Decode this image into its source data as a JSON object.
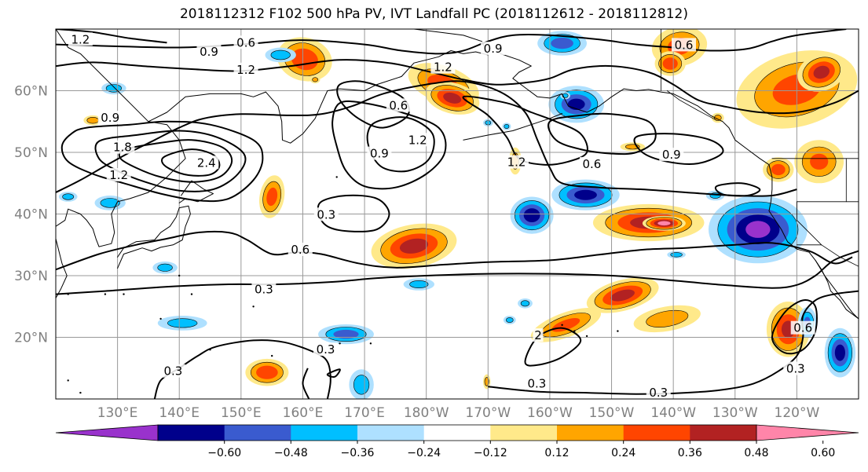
{
  "title": "2018112312 F102 500 hPa PV, IVT Landfall PC (2018112612 - 2018112812)",
  "map": {
    "projection": "PlateCarree",
    "lon_range": [
      120,
      250
    ],
    "lat_range": [
      10,
      70
    ],
    "lat_ticks": [
      {
        "lat": 20,
        "label": "20°N"
      },
      {
        "lat": 30,
        "label": "30°N"
      },
      {
        "lat": 40,
        "label": "40°N"
      },
      {
        "lat": 50,
        "label": "50°N"
      },
      {
        "lat": 60,
        "label": "60°N"
      }
    ],
    "lon_ticks": [
      {
        "lon": 130,
        "label": "130°E"
      },
      {
        "lon": 140,
        "label": "140°E"
      },
      {
        "lon": 150,
        "label": "150°E"
      },
      {
        "lon": 160,
        "label": "160°E"
      },
      {
        "lon": 170,
        "label": "170°E"
      },
      {
        "lon": 180,
        "label": "180°W"
      },
      {
        "lon": 190,
        "label": "170°W"
      },
      {
        "lon": 200,
        "label": "160°W"
      },
      {
        "lon": 210,
        "label": "150°W"
      },
      {
        "lon": 220,
        "label": "140°W"
      },
      {
        "lon": 230,
        "label": "130°W"
      },
      {
        "lon": 240,
        "label": "120°W"
      }
    ],
    "gridlines": true,
    "pv_contour_labels": [
      {
        "text": "1.2",
        "lon": 124.0,
        "lat": 68.3
      },
      {
        "text": "0.6",
        "lon": 150.8,
        "lat": 67.8
      },
      {
        "text": "0.9",
        "lon": 144.8,
        "lat": 66.3
      },
      {
        "text": "1.2",
        "lon": 150.8,
        "lat": 63.4
      },
      {
        "text": "0.9",
        "lon": 128.8,
        "lat": 55.6
      },
      {
        "text": "1.8",
        "lon": 130.8,
        "lat": 50.8
      },
      {
        "text": "1.2",
        "lon": 130.2,
        "lat": 46.3
      },
      {
        "text": "2.4",
        "lon": 144.4,
        "lat": 48.3
      },
      {
        "text": "1.2",
        "lon": 182.7,
        "lat": 63.8
      },
      {
        "text": "0.9",
        "lon": 190.8,
        "lat": 66.8
      },
      {
        "text": "0.6",
        "lon": 175.5,
        "lat": 57.6
      },
      {
        "text": "1.2",
        "lon": 178.6,
        "lat": 52.0
      },
      {
        "text": "0.9",
        "lon": 172.4,
        "lat": 49.8
      },
      {
        "text": "0.3",
        "lon": 163.8,
        "lat": 39.9
      },
      {
        "text": "0.6",
        "lon": 159.6,
        "lat": 34.2
      },
      {
        "text": "0.3",
        "lon": 153.7,
        "lat": 27.8
      },
      {
        "text": "1.2",
        "lon": 194.6,
        "lat": 48.4
      },
      {
        "text": "0.6",
        "lon": 206.8,
        "lat": 48.1
      },
      {
        "text": "0.9",
        "lon": 219.7,
        "lat": 49.6
      },
      {
        "text": "0.6",
        "lon": 221.7,
        "lat": 67.4
      },
      {
        "text": "0.3",
        "lon": 163.7,
        "lat": 18.0
      },
      {
        "text": "0.3",
        "lon": 139.0,
        "lat": 14.5
      },
      {
        "text": "0.3",
        "lon": 197.9,
        "lat": 12.5
      },
      {
        "text": "0.3",
        "lon": 217.6,
        "lat": 11.0
      },
      {
        "text": "0.3",
        "lon": 239.8,
        "lat": 14.9
      },
      {
        "text": "0.6",
        "lon": 241.0,
        "lat": 21.5
      },
      {
        "text": "2",
        "lon": 198.1,
        "lat": 20.3
      }
    ],
    "ivt_blobs": [
      {
        "lon": 160.3,
        "lat": 65.1,
        "rlon": 4.5,
        "rlat": 3.5,
        "rot": 15,
        "val": 0.45
      },
      {
        "lon": 182.8,
        "lat": 61.0,
        "rlon": 6,
        "rlat": 3,
        "rot": 20,
        "val": 0.42
      },
      {
        "lon": 184.2,
        "lat": 58.8,
        "rlon": 4.5,
        "rlat": 2.5,
        "rot": 15,
        "val": 0.52
      },
      {
        "lon": 162.0,
        "lat": 61.8,
        "rlon": 0.8,
        "rlat": 0.6,
        "rot": 0,
        "val": 0.26
      },
      {
        "lon": 126.0,
        "lat": 55.2,
        "rlon": 1.5,
        "rlat": 0.8,
        "rot": 0,
        "val": 0.3
      },
      {
        "lon": 155.0,
        "lat": 42.8,
        "rlon": 2,
        "rlat": 3.5,
        "rot": 10,
        "val": 0.4
      },
      {
        "lon": 178.0,
        "lat": 34.8,
        "rlon": 7,
        "rlat": 3.5,
        "rot": -10,
        "val": 0.52
      },
      {
        "lon": 216.0,
        "lat": 38.6,
        "rlon": 9,
        "rlat": 3,
        "rot": 0,
        "val": 0.52
      },
      {
        "lon": 218.5,
        "lat": 38.5,
        "rlon": 3.5,
        "rlat": 1.2,
        "rot": 0,
        "val": 0.66
      },
      {
        "lon": 221.0,
        "lat": 67.2,
        "rlon": 4.5,
        "rlat": 3.2,
        "rot": -10,
        "val": 0.4
      },
      {
        "lon": 219.5,
        "lat": 64.4,
        "rlon": 2.5,
        "rlat": 2,
        "rot": 0,
        "val": 0.45
      },
      {
        "lon": 240.0,
        "lat": 60.2,
        "rlon": 10,
        "rlat": 6,
        "rot": -15,
        "val": 0.38
      },
      {
        "lon": 244.0,
        "lat": 63.0,
        "rlon": 4,
        "rlat": 3,
        "rot": -20,
        "val": 0.52
      },
      {
        "lon": 243.6,
        "lat": 48.5,
        "rlon": 4,
        "rlat": 3.5,
        "rot": 0,
        "val": 0.36
      },
      {
        "lon": 237.0,
        "lat": 47.2,
        "rlon": 2.5,
        "rlat": 2,
        "rot": 0,
        "val": 0.42
      },
      {
        "lon": 211.8,
        "lat": 26.8,
        "rlon": 6,
        "rlat": 2.5,
        "rot": -15,
        "val": 0.52
      },
      {
        "lon": 202.6,
        "lat": 22.0,
        "rlon": 6,
        "rlat": 2,
        "rot": -20,
        "val": 0.38
      },
      {
        "lon": 219.0,
        "lat": 23.0,
        "rlon": 5.5,
        "rlat": 2,
        "rot": -10,
        "val": 0.3
      },
      {
        "lon": 238.6,
        "lat": 21.3,
        "rlon": 3.5,
        "rlat": 4.5,
        "rot": 0,
        "val": 0.5
      },
      {
        "lon": 154.2,
        "lat": 14.3,
        "rlon": 3.5,
        "rlat": 2.2,
        "rot": 0,
        "val": 0.46
      },
      {
        "lon": 194.4,
        "lat": 48.6,
        "rlon": 1,
        "rlat": 2.2,
        "rot": 0,
        "val": 0.28
      },
      {
        "lon": 227.2,
        "lat": 55.6,
        "rlon": 1,
        "rlat": 0.8,
        "rot": 0,
        "val": 0.26
      },
      {
        "lon": 213.4,
        "lat": 50.9,
        "rlon": 2,
        "rlat": 0.7,
        "rot": 0,
        "val": 0.26
      },
      {
        "lon": 189.8,
        "lat": 12.8,
        "rlon": 0.6,
        "rlat": 1.2,
        "rot": 0,
        "val": 0.26
      },
      {
        "lon": 129.4,
        "lat": 60.4,
        "rlon": 2,
        "rlat": 1,
        "rot": 0,
        "val": -0.3
      },
      {
        "lon": 156.4,
        "lat": 65.8,
        "rlon": 2.5,
        "rlat": 1.2,
        "rot": 0,
        "val": -0.3
      },
      {
        "lon": 202.0,
        "lat": 67.7,
        "rlon": 4,
        "rlat": 2,
        "rot": 0,
        "val": -0.42
      },
      {
        "lon": 204.3,
        "lat": 57.8,
        "rlon": 4.5,
        "rlat": 3,
        "rot": 0,
        "val": -0.5
      },
      {
        "lon": 205.8,
        "lat": 43.1,
        "rlon": 5.5,
        "rlat": 2.5,
        "rot": 0,
        "val": -0.52
      },
      {
        "lon": 197.1,
        "lat": 39.8,
        "rlon": 3.5,
        "rlat": 3,
        "rot": 0,
        "val": -0.56
      },
      {
        "lon": 233.7,
        "lat": 37.5,
        "rlon": 8,
        "rlat": 5.5,
        "rot": 0,
        "val": -0.62
      },
      {
        "lon": 241.7,
        "lat": 22.4,
        "rlon": 1.5,
        "rlat": 2.5,
        "rot": 0,
        "val": -0.36
      },
      {
        "lon": 247.0,
        "lat": 17.5,
        "rlon": 2.5,
        "rlat": 4,
        "rot": 0,
        "val": -0.52
      },
      {
        "lon": 167.0,
        "lat": 20.5,
        "rlon": 4.5,
        "rlat": 1.6,
        "rot": 0,
        "val": -0.42
      },
      {
        "lon": 128.8,
        "lat": 41.8,
        "rlon": 2.5,
        "rlat": 1.2,
        "rot": 0,
        "val": -0.3
      },
      {
        "lon": 137.7,
        "lat": 31.3,
        "rlon": 2,
        "rlat": 1,
        "rot": 0,
        "val": -0.28
      },
      {
        "lon": 178.8,
        "lat": 28.6,
        "rlon": 2.5,
        "rlat": 1,
        "rot": 0,
        "val": -0.28
      },
      {
        "lon": 169.5,
        "lat": 12.3,
        "rlon": 2,
        "rlat": 2.5,
        "rot": 0,
        "val": -0.3
      },
      {
        "lon": 220.5,
        "lat": 33.4,
        "rlon": 1.5,
        "rlat": 0.6,
        "rot": 0,
        "val": -0.3
      },
      {
        "lon": 202.5,
        "lat": 59.2,
        "rlon": 0.8,
        "rlat": 0.6,
        "rot": 0,
        "val": -0.26
      },
      {
        "lon": 193.0,
        "lat": 54.2,
        "rlon": 0.7,
        "rlat": 0.6,
        "rot": 0,
        "val": -0.26
      },
      {
        "lon": 196.0,
        "lat": 25.5,
        "rlon": 1.2,
        "rlat": 0.8,
        "rot": 0,
        "val": -0.26
      },
      {
        "lon": 193.5,
        "lat": 22.8,
        "rlon": 1,
        "rlat": 0.7,
        "rot": 0,
        "val": -0.26
      },
      {
        "lon": 226.8,
        "lat": 43.0,
        "rlon": 1.5,
        "rlat": 0.8,
        "rot": 0,
        "val": -0.26
      },
      {
        "lon": 190.0,
        "lat": 54.8,
        "rlon": 0.8,
        "rlat": 0.6,
        "rot": 0,
        "val": -0.26
      },
      {
        "lon": 140.5,
        "lat": 22.3,
        "rlon": 4,
        "rlat": 1.2,
        "rot": 0,
        "val": -0.28
      },
      {
        "lon": 122.0,
        "lat": 42.8,
        "rlon": 1.5,
        "rlat": 0.8,
        "rot": 0,
        "val": -0.28
      }
    ]
  },
  "colorbar": {
    "colors": [
      "#9932cc",
      "#00008b",
      "#3a5bcf",
      "#00bfff",
      "#aee0ff",
      "#ffffff",
      "#ffe98a",
      "#ffa500",
      "#ff4500",
      "#b22222",
      "#ff85a9"
    ],
    "ticks": [
      "−0.60",
      "−0.48",
      "−0.36",
      "−0.24",
      "−0.12",
      "0.12",
      "0.24",
      "0.36",
      "0.48",
      "0.60"
    ],
    "levels": [
      -0.6,
      -0.48,
      -0.36,
      -0.24,
      -0.12,
      0.12,
      0.24,
      0.36,
      0.48,
      0.6
    ],
    "extend": "both"
  }
}
